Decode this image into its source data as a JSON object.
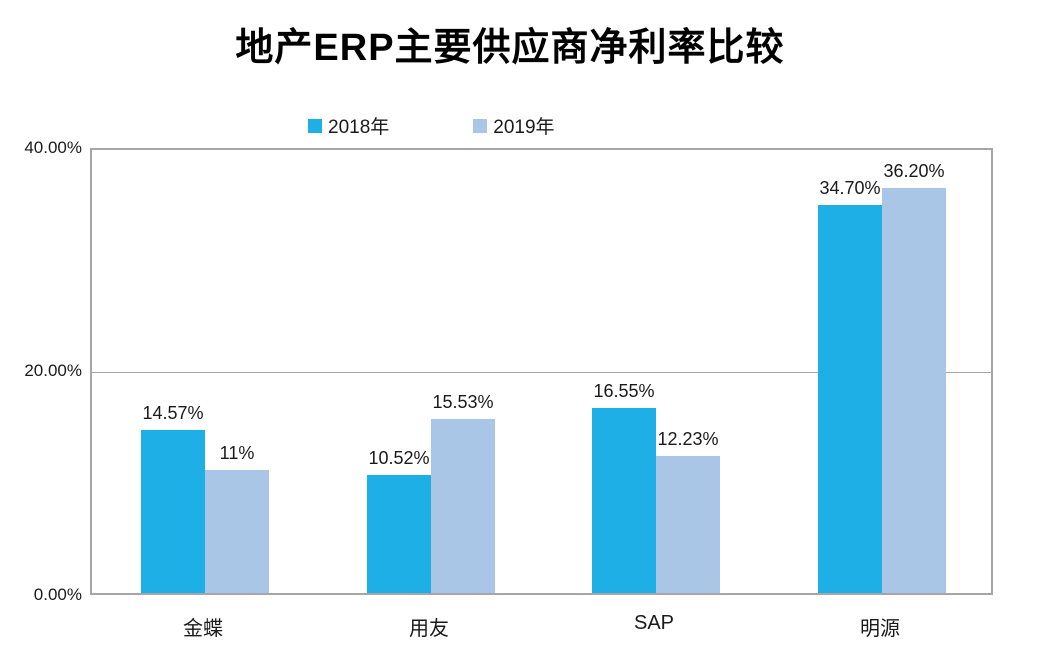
{
  "chart_data": {
    "type": "bar",
    "title": "地产ERP主要供应商净利率比较",
    "categories": [
      "金蝶",
      "用友",
      "SAP",
      "明源"
    ],
    "series": [
      {
        "name": "2018年",
        "color": "#1eafe6",
        "values": [
          14.57,
          10.52,
          16.55,
          34.7
        ],
        "labels": [
          "14.57%",
          "10.52%",
          "16.55%",
          "34.70%"
        ]
      },
      {
        "name": "2019年",
        "color": "#a9c6e6",
        "values": [
          11,
          15.53,
          12.23,
          36.2
        ],
        "labels": [
          "11%",
          "15.53%",
          "12.23%",
          "36.20%"
        ]
      }
    ],
    "y_axis": {
      "min": 0,
      "max": 40,
      "ticks": [
        "0.00%",
        "20.00%",
        "40.00%"
      ],
      "gridlines": true
    },
    "legend_position": "top",
    "colors": {
      "axis_line": "#a6a6a6",
      "text": "#1a1a1a",
      "background": "#ffffff"
    }
  }
}
